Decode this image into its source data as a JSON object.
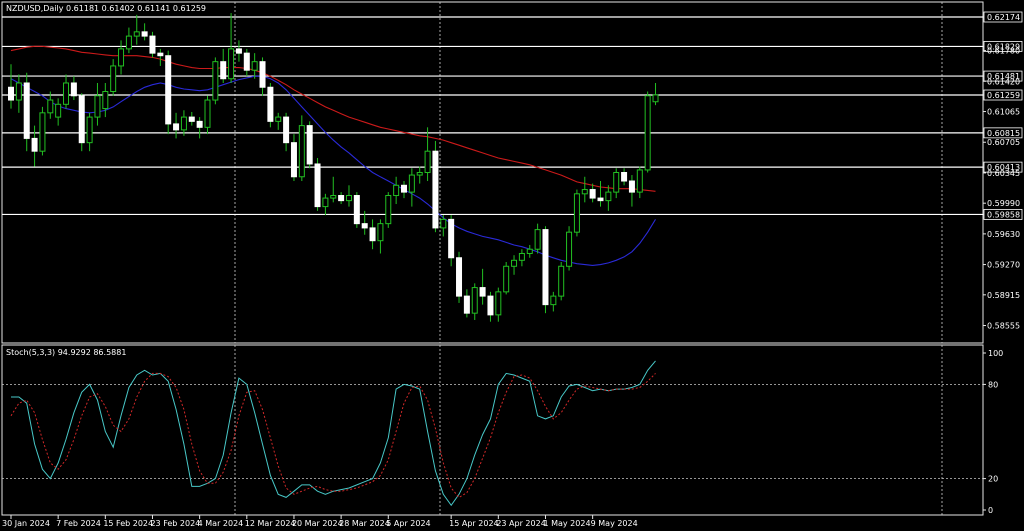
{
  "chart_data": [
    {
      "type": "candlestick",
      "title": "NZDUSD,Daily  0.61181 0.61402 0.61141 0.61259",
      "symbol": "NZDUSD",
      "timeframe": "Daily",
      "ohlc_header": [
        "0.61181",
        "0.61402",
        "0.61141",
        "0.61259"
      ],
      "ylim": [
        0.5835,
        0.6235
      ],
      "price_ticks": [
        "0.62174",
        "0.61829",
        "0.61780",
        "0.61481",
        "0.61420",
        "0.61259",
        "0.61065",
        "0.60815",
        "0.60705",
        "0.60413",
        "0.60345",
        "0.59990",
        "0.59858",
        "0.59630",
        "0.59270",
        "0.58915",
        "0.58555"
      ],
      "level_lines": [
        0.62174,
        0.61829,
        0.61481,
        0.61259,
        0.60815,
        0.60413,
        0.59858
      ],
      "x_labels": [
        "30 Jan 2024",
        "7 Feb 2024",
        "15 Feb 2024",
        "23 Feb 2024",
        "4 Mar 2024",
        "12 Mar 2024",
        "20 Mar 2024",
        "28 Mar 2024",
        "5 Apr 2024",
        "15 Apr 2024",
        "23 Apr 2024",
        "1 May 2024",
        "9 May 2024"
      ],
      "x_label_index": [
        0,
        6,
        12,
        18,
        24,
        30,
        36,
        42,
        48,
        56,
        62,
        68,
        74
      ],
      "series": [
        {
          "type": "ohlc",
          "values": [
            [
              0.6135,
              0.6162,
              0.611,
              0.612
            ],
            [
              0.612,
              0.615,
              0.6105,
              0.614
            ],
            [
              0.614,
              0.6152,
              0.606,
              0.6075
            ],
            [
              0.6075,
              0.609,
              0.6042,
              0.606
            ],
            [
              0.606,
              0.6112,
              0.6055,
              0.6105
            ],
            [
              0.6105,
              0.613,
              0.6098,
              0.612
            ],
            [
              0.61,
              0.6122,
              0.609,
              0.6115
            ],
            [
              0.6115,
              0.615,
              0.611,
              0.614
            ],
            [
              0.614,
              0.6148,
              0.612,
              0.6125
            ],
            [
              0.6125,
              0.6128,
              0.606,
              0.607
            ],
            [
              0.607,
              0.6105,
              0.606,
              0.61
            ],
            [
              0.61,
              0.614,
              0.609,
              0.6125
            ],
            [
              0.611,
              0.614,
              0.61,
              0.613
            ],
            [
              0.613,
              0.6168,
              0.6125,
              0.616
            ],
            [
              0.616,
              0.619,
              0.615,
              0.618
            ],
            [
              0.618,
              0.6205,
              0.6175,
              0.6195
            ],
            [
              0.6195,
              0.622,
              0.6185,
              0.62
            ],
            [
              0.62,
              0.621,
              0.619,
              0.6195
            ],
            [
              0.6195,
              0.62,
              0.617,
              0.6175
            ],
            [
              0.6175,
              0.618,
              0.616,
              0.6172
            ],
            [
              0.6172,
              0.6178,
              0.608,
              0.6092
            ],
            [
              0.6092,
              0.6105,
              0.6075,
              0.6085
            ],
            [
              0.6085,
              0.6108,
              0.6078,
              0.61
            ],
            [
              0.61,
              0.6106,
              0.609,
              0.6095
            ],
            [
              0.6095,
              0.61,
              0.6075,
              0.6088
            ],
            [
              0.6088,
              0.6125,
              0.608,
              0.612
            ],
            [
              0.612,
              0.617,
              0.6115,
              0.6165
            ],
            [
              0.6165,
              0.618,
              0.614,
              0.6145
            ],
            [
              0.6145,
              0.6222,
              0.614,
              0.618
            ],
            [
              0.618,
              0.619,
              0.6165,
              0.6175
            ],
            [
              0.6175,
              0.618,
              0.6148,
              0.6155
            ],
            [
              0.6155,
              0.6175,
              0.6145,
              0.6165
            ],
            [
              0.6165,
              0.617,
              0.6125,
              0.6135
            ],
            [
              0.6135,
              0.614,
              0.6088,
              0.6095
            ],
            [
              0.6095,
              0.6105,
              0.6085,
              0.61
            ],
            [
              0.61,
              0.6105,
              0.606,
              0.607
            ],
            [
              0.607,
              0.608,
              0.6025,
              0.603
            ],
            [
              0.603,
              0.6102,
              0.6025,
              0.609
            ],
            [
              0.609,
              0.6095,
              0.604,
              0.6045
            ],
            [
              0.6045,
              0.6052,
              0.599,
              0.5995
            ],
            [
              0.5995,
              0.601,
              0.5985,
              0.6005
            ],
            [
              0.6005,
              0.603,
              0.6,
              0.6008
            ],
            [
              0.6008,
              0.6012,
              0.5998,
              0.6002
            ],
            [
              0.6002,
              0.602,
              0.5995,
              0.6008
            ],
            [
              0.6008,
              0.6012,
              0.597,
              0.5975
            ],
            [
              0.5975,
              0.599,
              0.5962,
              0.597
            ],
            [
              0.597,
              0.598,
              0.5945,
              0.5955
            ],
            [
              0.5955,
              0.598,
              0.594,
              0.5975
            ],
            [
              0.5975,
              0.6012,
              0.597,
              0.6008
            ],
            [
              0.6008,
              0.603,
              0.5998,
              0.602
            ],
            [
              0.602,
              0.6025,
              0.6005,
              0.6012
            ],
            [
              0.6012,
              0.604,
              0.5995,
              0.6032
            ],
            [
              0.6032,
              0.6042,
              0.6022,
              0.6035
            ],
            [
              0.6035,
              0.6088,
              0.6025,
              0.606
            ],
            [
              0.606,
              0.6072,
              0.5965,
              0.597
            ],
            [
              0.597,
              0.5985,
              0.596,
              0.598
            ],
            [
              0.598,
              0.5985,
              0.5925,
              0.5935
            ],
            [
              0.5935,
              0.5942,
              0.5882,
              0.589
            ],
            [
              0.589,
              0.5898,
              0.5865,
              0.587
            ],
            [
              0.587,
              0.5905,
              0.5862,
              0.59
            ],
            [
              0.59,
              0.5922,
              0.588,
              0.589
            ],
            [
              0.589,
              0.5895,
              0.586,
              0.5868
            ],
            [
              0.5868,
              0.59,
              0.586,
              0.5895
            ],
            [
              0.5895,
              0.593,
              0.5892,
              0.5925
            ],
            [
              0.5925,
              0.5938,
              0.5915,
              0.5932
            ],
            [
              0.5932,
              0.5945,
              0.5925,
              0.594
            ],
            [
              0.594,
              0.595,
              0.5935,
              0.5945
            ],
            [
              0.5945,
              0.5975,
              0.594,
              0.5968
            ],
            [
              0.5968,
              0.5972,
              0.587,
              0.588
            ],
            [
              0.588,
              0.5895,
              0.5872,
              0.589
            ],
            [
              0.589,
              0.593,
              0.5885,
              0.5925
            ],
            [
              0.5925,
              0.5972,
              0.592,
              0.5965
            ],
            [
              0.5965,
              0.6015,
              0.596,
              0.601
            ],
            [
              0.601,
              0.603,
              0.6,
              0.6015
            ],
            [
              0.6015,
              0.6022,
              0.6,
              0.6005
            ],
            [
              0.6005,
              0.6025,
              0.5995,
              0.6002
            ],
            [
              0.6002,
              0.602,
              0.599,
              0.6012
            ],
            [
              0.6012,
              0.604,
              0.6005,
              0.6035
            ],
            [
              0.6035,
              0.604,
              0.602,
              0.6025
            ],
            [
              0.6025,
              0.6032,
              0.5995,
              0.6012
            ],
            [
              0.6012,
              0.6042,
              0.6005,
              0.6038
            ],
            [
              0.6038,
              0.613,
              0.6035,
              0.6125
            ],
            [
              0.6118,
              0.614,
              0.6114,
              0.6126
            ]
          ]
        },
        {
          "type": "line",
          "color": "#cc1a1a",
          "values": [
            0.6178,
            0.618,
            0.6182,
            0.6183,
            0.6183,
            0.6182,
            0.6181,
            0.618,
            0.6178,
            0.6176,
            0.6175,
            0.6174,
            0.6173,
            0.6172,
            0.6172,
            0.6172,
            0.6172,
            0.6171,
            0.617,
            0.6168,
            0.6165,
            0.6162,
            0.616,
            0.6158,
            0.6157,
            0.6157,
            0.6157,
            0.6158,
            0.6158,
            0.6158,
            0.6157,
            0.6155,
            0.6152,
            0.6148,
            0.6143,
            0.6138,
            0.6132,
            0.6127,
            0.6122,
            0.6117,
            0.6112,
            0.6108,
            0.6104,
            0.61,
            0.6097,
            0.6094,
            0.6091,
            0.6088,
            0.6086,
            0.6084,
            0.6082,
            0.608,
            0.6078,
            0.6077,
            0.6075,
            0.6073,
            0.607,
            0.6067,
            0.6064,
            0.6061,
            0.6058,
            0.6055,
            0.6052,
            0.605,
            0.6048,
            0.6046,
            0.6044,
            0.6041,
            0.6038,
            0.6035,
            0.6032,
            0.6028,
            0.6024,
            0.6022,
            0.602,
            0.6018,
            0.6017,
            0.6016,
            0.6016,
            0.6016,
            0.6015,
            0.6014,
            0.6013
          ]
        },
        {
          "type": "line",
          "color": "#2a2ad8",
          "values": [
            0.6145,
            0.614,
            0.6135,
            0.613,
            0.6125,
            0.6118,
            0.6113,
            0.611,
            0.6108,
            0.6106,
            0.6105,
            0.6106,
            0.6108,
            0.6112,
            0.6118,
            0.6124,
            0.613,
            0.6135,
            0.6138,
            0.614,
            0.6138,
            0.6135,
            0.6133,
            0.6132,
            0.6131,
            0.6132,
            0.6135,
            0.6138,
            0.6141,
            0.6144,
            0.6146,
            0.6148,
            0.6148,
            0.6145,
            0.614,
            0.6132,
            0.6122,
            0.6112,
            0.6102,
            0.6092,
            0.6082,
            0.6073,
            0.6065,
            0.6058,
            0.605,
            0.6042,
            0.6035,
            0.603,
            0.6025,
            0.602,
            0.6015,
            0.601,
            0.6005,
            0.5998,
            0.599,
            0.5982,
            0.5975,
            0.597,
            0.5966,
            0.5963,
            0.596,
            0.5958,
            0.5956,
            0.5953,
            0.595,
            0.5948,
            0.5945,
            0.5942,
            0.5938,
            0.5935,
            0.5932,
            0.593,
            0.5928,
            0.5927,
            0.5926,
            0.5927,
            0.5929,
            0.5932,
            0.5936,
            0.5942,
            0.5952,
            0.5965,
            0.598
          ]
        }
      ]
    },
    {
      "type": "line",
      "title": "Stoch(5,3,3) 94.9292 86.5881",
      "label": "Stoch(5,3,3)",
      "main_value": "94.9292",
      "signal_value": "86.5881",
      "ylim": [
        0,
        100
      ],
      "y_ticks": [
        "100",
        "80",
        "20",
        "0"
      ],
      "levels": [
        80,
        20
      ],
      "series": [
        {
          "type": "line",
          "color": "#48c8c8",
          "values": [
            72,
            72,
            68,
            42,
            26,
            20,
            30,
            45,
            62,
            75,
            80,
            70,
            50,
            40,
            60,
            78,
            86,
            89,
            86,
            87,
            82,
            64,
            42,
            15,
            15,
            17,
            20,
            35,
            62,
            84,
            80,
            62,
            42,
            22,
            10,
            8,
            12,
            16,
            16,
            12,
            10,
            12,
            13,
            14,
            16,
            18,
            20,
            30,
            46,
            77,
            80,
            79,
            77,
            50,
            25,
            10,
            3,
            10,
            20,
            35,
            48,
            58,
            80,
            87,
            86,
            84,
            82,
            60,
            58,
            60,
            72,
            79,
            80,
            78,
            76,
            77,
            76,
            77,
            77,
            78,
            80,
            89,
            95
          ]
        },
        {
          "type": "line",
          "color": "#d22828",
          "dash": true,
          "values": [
            60,
            68,
            70,
            62,
            45,
            30,
            26,
            32,
            45,
            60,
            72,
            74,
            66,
            54,
            50,
            58,
            72,
            82,
            87,
            87,
            85,
            78,
            64,
            42,
            25,
            17,
            17,
            24,
            38,
            60,
            75,
            76,
            64,
            46,
            28,
            14,
            10,
            12,
            14,
            15,
            13,
            12,
            12,
            13,
            14,
            16,
            18,
            22,
            32,
            50,
            68,
            78,
            79,
            70,
            52,
            30,
            14,
            8,
            11,
            20,
            33,
            46,
            62,
            75,
            85,
            86,
            84,
            76,
            66,
            58,
            62,
            70,
            77,
            79,
            78,
            77,
            76,
            77,
            77,
            77,
            78,
            82,
            87
          ]
        }
      ]
    }
  ]
}
